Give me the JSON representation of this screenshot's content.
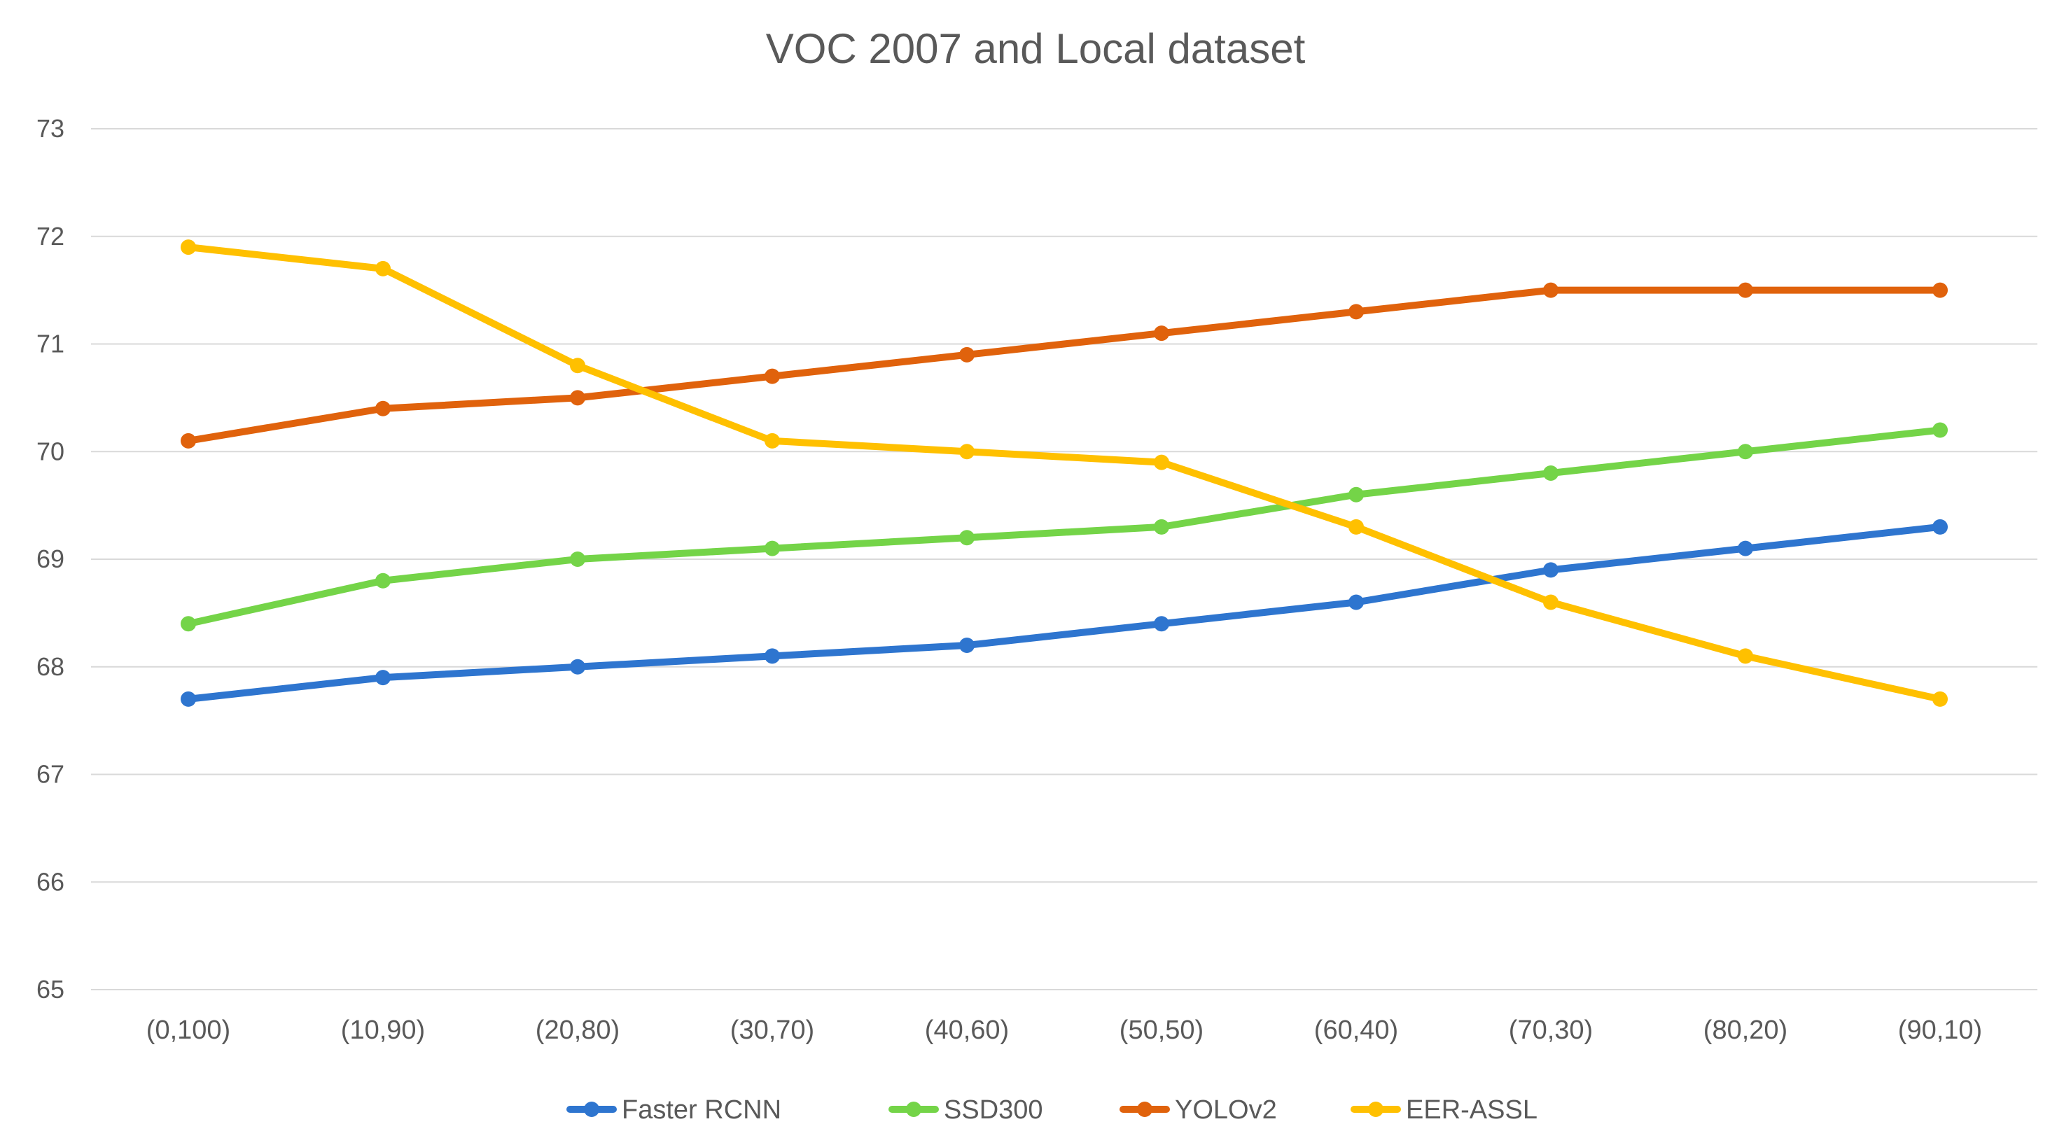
{
  "chart_data": {
    "type": "line",
    "title": "VOC 2007 and Local dataset",
    "xlabel": "",
    "ylabel": "",
    "categories": [
      "(0,100)",
      "(10,90)",
      "(20,80)",
      "(30,70)",
      "(40,60)",
      "(50,50)",
      "(60,40)",
      "(70,30)",
      "(80,20)",
      "(90,10)"
    ],
    "ylim": [
      65,
      73
    ],
    "yticks": [
      "65",
      "66",
      "67",
      "68",
      "69",
      "70",
      "71",
      "72",
      "73"
    ],
    "grid": true,
    "legend_position": "bottom",
    "series": [
      {
        "name": "Faster RCNN",
        "color": "#2e75cf",
        "values": [
          67.7,
          67.9,
          68.0,
          68.1,
          68.2,
          68.4,
          68.6,
          68.9,
          69.1,
          69.3
        ]
      },
      {
        "name": "SSD300",
        "color": "#74d448",
        "values": [
          68.4,
          68.8,
          69.0,
          69.1,
          69.2,
          69.3,
          69.6,
          69.8,
          70.0,
          70.2
        ]
      },
      {
        "name": "YOLOv2",
        "color": "#e0620c",
        "values": [
          70.1,
          70.4,
          70.5,
          70.7,
          70.9,
          71.1,
          71.3,
          71.5,
          71.5,
          71.5
        ]
      },
      {
        "name": "EER-ASSL",
        "color": "#ffc000",
        "values": [
          71.9,
          71.7,
          70.8,
          70.1,
          70.0,
          69.9,
          69.3,
          68.6,
          68.1,
          67.7
        ]
      }
    ]
  }
}
